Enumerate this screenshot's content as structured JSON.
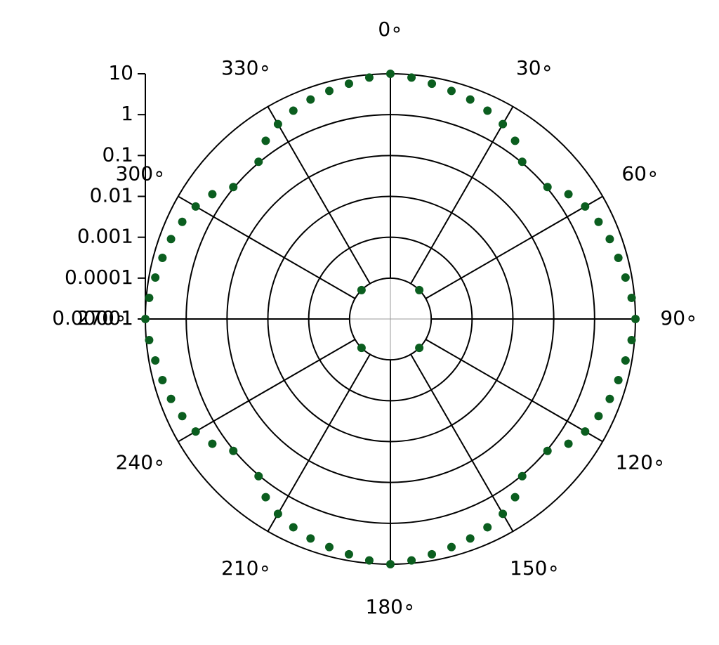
{
  "chart_data": {
    "type": "polar-scatter",
    "log_r": true,
    "color": "#0b5e1f",
    "theta": [
      0,
      5,
      10,
      15,
      20,
      25,
      30,
      35,
      40,
      45,
      50,
      55,
      60,
      65,
      70,
      75,
      80,
      85,
      90,
      95,
      100,
      105,
      110,
      115,
      120,
      125,
      130,
      135,
      140,
      145,
      150,
      155,
      160,
      165,
      170,
      175,
      180,
      185,
      190,
      195,
      200,
      205,
      210,
      215,
      220,
      225,
      230,
      235,
      240,
      245,
      250,
      255,
      260,
      265,
      270,
      275,
      280,
      285,
      290,
      295,
      300,
      305,
      310,
      315,
      320,
      325,
      330,
      335,
      340,
      345,
      350,
      355
    ],
    "values": [
      10,
      8.5,
      7,
      6,
      5.2,
      4.2,
      3.2,
      2.1,
      1.05,
      0.0001,
      1.05,
      2.1,
      3.2,
      4.2,
      5.2,
      6,
      7,
      8.5,
      10,
      8.5,
      7,
      6,
      5.2,
      4.2,
      3.2,
      2.1,
      1.05,
      0.0001,
      1.05,
      2.1,
      3.2,
      4.2,
      5.2,
      6,
      7,
      8.5,
      10,
      8.5,
      7,
      6,
      5.2,
      4.2,
      3.2,
      2.1,
      1.05,
      0.0001,
      1.05,
      2.1,
      3.2,
      4.2,
      5.2,
      6,
      7,
      8.5,
      10,
      8.5,
      7,
      6,
      5.2,
      4.2,
      3.2,
      2.1,
      1.05,
      0.0001,
      1.05,
      2.1,
      3.2,
      4.2,
      5.2,
      6,
      7,
      8.5
    ],
    "rlim": [
      1e-05,
      10
    ],
    "rticks": [
      10,
      1,
      0.1,
      0.01,
      0.001,
      0.0001,
      1e-05
    ],
    "thetaticks": [
      {
        "value": 0,
        "label": "0∘"
      },
      {
        "value": 30,
        "label": "30∘"
      },
      {
        "value": 60,
        "label": "60∘"
      },
      {
        "value": 90,
        "label": "90∘"
      },
      {
        "value": 120,
        "label": "120∘"
      },
      {
        "value": 150,
        "label": "150∘"
      },
      {
        "value": 180,
        "label": "180∘"
      },
      {
        "value": 210,
        "label": "210∘"
      },
      {
        "value": 240,
        "label": "240∘"
      },
      {
        "value": 270,
        "label": "270∘"
      },
      {
        "value": 300,
        "label": "300∘"
      },
      {
        "value": 330,
        "label": "330∘"
      }
    ]
  }
}
